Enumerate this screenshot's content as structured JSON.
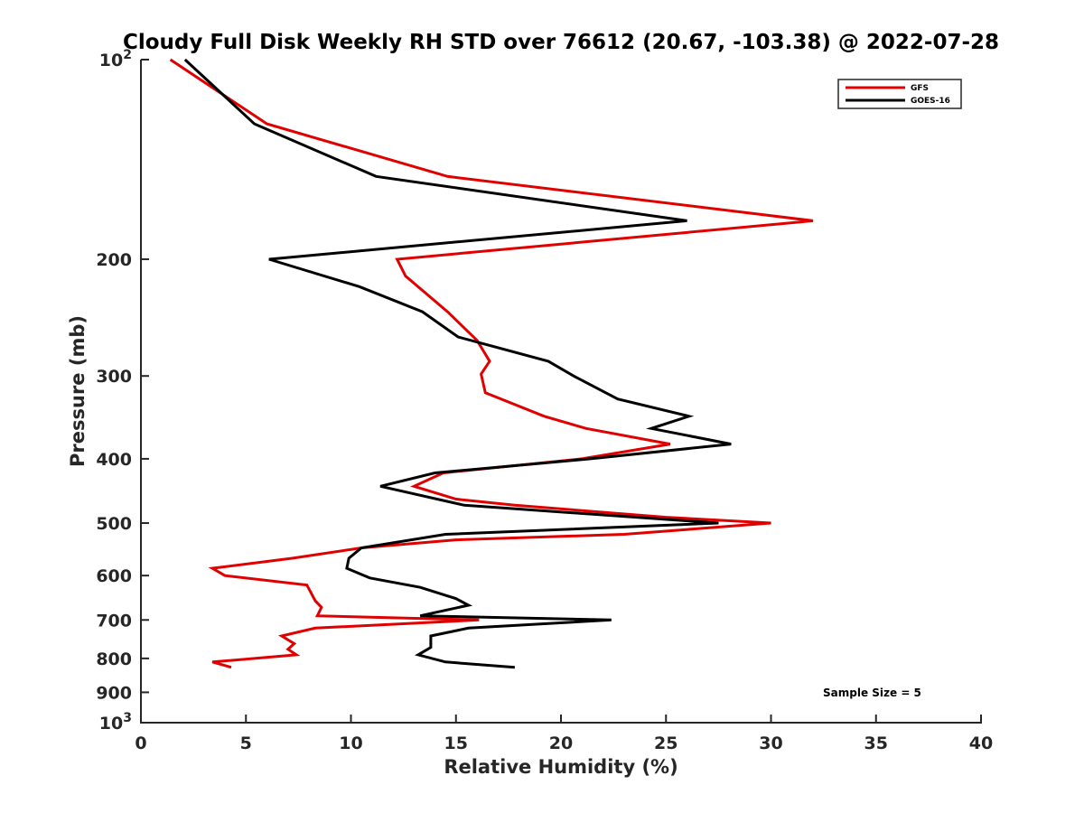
{
  "chart_data": {
    "type": "line",
    "title": "Cloudy Full Disk Weekly RH STD over 76612 (20.67, -103.38) @ 2022-07-28",
    "xlabel": "Relative Humidity (%)",
    "ylabel": "Pressure (mb)",
    "xlim": [
      0,
      40
    ],
    "ylim": [
      100,
      1000
    ],
    "yscale": "log",
    "y_reversed": true,
    "grid": false,
    "legend_position": "top-right",
    "x_ticks": [
      "0",
      "5",
      "10",
      "15",
      "20",
      "25",
      "30",
      "35",
      "40"
    ],
    "y_ticks": [
      {
        "value": 100,
        "base": "10",
        "exp": "2"
      },
      {
        "value": 200,
        "label": "200"
      },
      {
        "value": 300,
        "label": "300"
      },
      {
        "value": 400,
        "label": "400"
      },
      {
        "value": 500,
        "label": "500"
      },
      {
        "value": 600,
        "label": "600"
      },
      {
        "value": 700,
        "label": "700"
      },
      {
        "value": 800,
        "label": "800"
      },
      {
        "value": 900,
        "label": "900"
      },
      {
        "value": 1000,
        "base": "10",
        "exp": "3"
      }
    ],
    "series": [
      {
        "name": "GFS",
        "color": "#e00000",
        "points": [
          [
            1.4,
            100
          ],
          [
            6.0,
            125
          ],
          [
            14.6,
            150
          ],
          [
            32.0,
            175
          ],
          [
            12.2,
            200
          ],
          [
            12.6,
            212
          ],
          [
            14.6,
            240
          ],
          [
            16.0,
            265
          ],
          [
            16.6,
            285
          ],
          [
            16.2,
            298
          ],
          [
            16.4,
            318
          ],
          [
            19.2,
            345
          ],
          [
            21.2,
            360
          ],
          [
            25.2,
            380
          ],
          [
            21.0,
            400
          ],
          [
            14.4,
            420
          ],
          [
            13.0,
            440
          ],
          [
            15.0,
            460
          ],
          [
            17.8,
            470
          ],
          [
            25.0,
            490
          ],
          [
            30.0,
            500
          ],
          [
            23.0,
            520
          ],
          [
            15.0,
            530
          ],
          [
            10.5,
            545
          ],
          [
            7.2,
            565
          ],
          [
            3.4,
            585
          ],
          [
            4.0,
            600
          ],
          [
            7.9,
            620
          ],
          [
            8.3,
            655
          ],
          [
            8.6,
            670
          ],
          [
            8.4,
            690
          ],
          [
            16.1,
            700
          ],
          [
            8.3,
            720
          ],
          [
            6.7,
            740
          ],
          [
            7.3,
            760
          ],
          [
            7.0,
            775
          ],
          [
            7.4,
            790
          ],
          [
            3.4,
            810
          ],
          [
            4.3,
            825
          ]
        ]
      },
      {
        "name": "GOES-16",
        "color": "#000000",
        "points": [
          [
            2.1,
            100
          ],
          [
            5.4,
            125
          ],
          [
            11.2,
            150
          ],
          [
            26.0,
            175
          ],
          [
            6.1,
            200
          ],
          [
            10.4,
            220
          ],
          [
            13.4,
            240
          ],
          [
            15.1,
            262
          ],
          [
            19.4,
            285
          ],
          [
            20.6,
            300
          ],
          [
            22.7,
            325
          ],
          [
            26.1,
            345
          ],
          [
            24.3,
            360
          ],
          [
            28.1,
            380
          ],
          [
            21.4,
            400
          ],
          [
            14.0,
            420
          ],
          [
            11.4,
            440
          ],
          [
            15.4,
            470
          ],
          [
            27.5,
            500
          ],
          [
            14.5,
            520
          ],
          [
            10.5,
            545
          ],
          [
            9.9,
            565
          ],
          [
            9.8,
            585
          ],
          [
            10.9,
            605
          ],
          [
            13.3,
            625
          ],
          [
            15.0,
            650
          ],
          [
            15.6,
            665
          ],
          [
            13.3,
            690
          ],
          [
            22.4,
            700
          ],
          [
            15.6,
            720
          ],
          [
            13.8,
            740
          ],
          [
            13.8,
            770
          ],
          [
            13.2,
            790
          ],
          [
            14.5,
            810
          ],
          [
            17.8,
            825
          ]
        ]
      }
    ],
    "annotation": "Sample Size = 5"
  }
}
